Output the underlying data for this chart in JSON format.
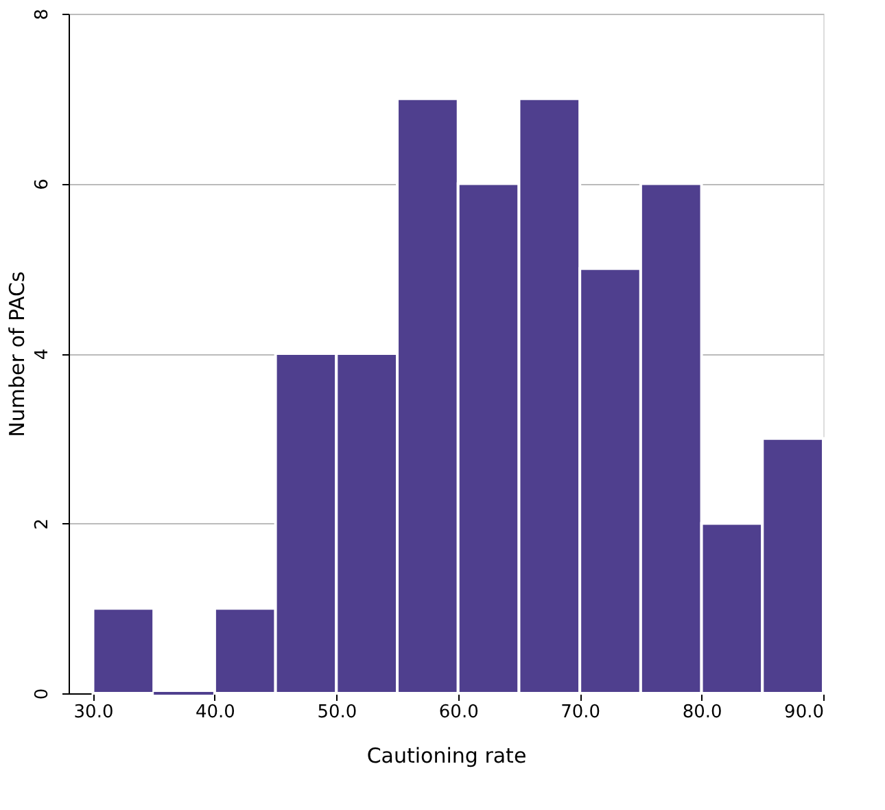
{
  "chart_data": {
    "type": "histogram",
    "xlabel": "Cautioning rate",
    "ylabel": "Number of PACs",
    "bins": [
      30,
      35,
      40,
      45,
      50,
      55,
      60,
      65,
      70,
      75,
      80,
      85,
      90
    ],
    "values": [
      1,
      0,
      1,
      4,
      4,
      7,
      6,
      7,
      5,
      6,
      2,
      3
    ],
    "color": "#4f3f8e",
    "xlim": [
      28,
      90
    ],
    "ylim": [
      0,
      8
    ],
    "xticks": [
      {
        "value": 30,
        "label": "30.0"
      },
      {
        "value": 40,
        "label": "40.0"
      },
      {
        "value": 50,
        "label": "50.0"
      },
      {
        "value": 60,
        "label": "60.0"
      },
      {
        "value": 70,
        "label": "70.0"
      },
      {
        "value": 80,
        "label": "80.0"
      },
      {
        "value": 90,
        "label": "90.0"
      }
    ],
    "yticks": [
      0,
      2,
      4,
      6,
      8
    ],
    "grid": "y"
  }
}
